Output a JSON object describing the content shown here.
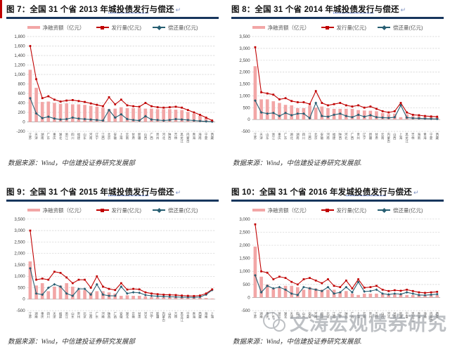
{
  "page": {
    "return_mark": "↵",
    "watermark_text": "文涛宏观债券研究"
  },
  "legend": {
    "net": "净融资额（亿元）",
    "issue": "发行量(亿元)",
    "repay": "偿还量(亿元)"
  },
  "colors": {
    "bar": "#f2a6a6",
    "issue_line": "#c00000",
    "repay_line": "#275e72",
    "title_rule": "#17365d",
    "grid": "#cfcfcf",
    "accent": "#c00000"
  },
  "chart_data": [
    {
      "type": "bar",
      "fig_label": "图 7：",
      "title_pre": "全国 31 个省 2013 年",
      "title_link": "城投债发行",
      "title_post": "与偿还",
      "source": "数据来源：Wind，中信建投证券研究发展部",
      "ylim": [
        -200,
        1800
      ],
      "ystep": 200,
      "categories": [
        "江苏",
        "天津",
        "湖南",
        "广东",
        "重庆",
        "湖北",
        "浙江",
        "四川",
        "福建",
        "山东",
        "河南",
        "辽宁",
        "江西",
        "北京",
        "安徽",
        "上海",
        "云南",
        "甘肃",
        "新疆",
        "山西",
        "广西",
        "贵州",
        "河北",
        "陕西",
        "吉林",
        "黑龙江",
        "内蒙古",
        "青海",
        "海南",
        "宁夏",
        "西藏"
      ],
      "series": [
        {
          "name": "净融资额（亿元）",
          "role": "bars",
          "values": [
            1100,
            720,
            420,
            430,
            400,
            380,
            390,
            370,
            370,
            360,
            340,
            320,
            300,
            270,
            280,
            310,
            290,
            290,
            290,
            280,
            280,
            270,
            270,
            270,
            260,
            250,
            210,
            170,
            130,
            80,
            25
          ]
        },
        {
          "name": "发行量(亿元)",
          "role": "issue",
          "values": [
            1600,
            900,
            500,
            540,
            470,
            430,
            450,
            460,
            440,
            420,
            390,
            360,
            330,
            520,
            370,
            470,
            350,
            330,
            320,
            400,
            330,
            310,
            300,
            310,
            320,
            300,
            250,
            200,
            150,
            90,
            30
          ]
        },
        {
          "name": "偿还量(亿元)",
          "role": "repay",
          "values": [
            500,
            180,
            80,
            110,
            70,
            50,
            60,
            90,
            70,
            60,
            50,
            40,
            30,
            250,
            90,
            160,
            60,
            40,
            30,
            120,
            50,
            40,
            30,
            40,
            60,
            50,
            40,
            30,
            20,
            10,
            5
          ]
        }
      ]
    },
    {
      "type": "bar",
      "fig_label": "图 8：",
      "title_pre": "全国 31 个省 2014 年",
      "title_link": "城投债发行",
      "title_post": "与偿还",
      "source": "数据来源：Wind，中信建投证券研究发展部.",
      "ylim": [
        -500,
        3500
      ],
      "ystep": 500,
      "categories": [
        "江苏",
        "天津",
        "山东",
        "浙江",
        "重庆",
        "广东",
        "湖北",
        "湖南",
        "四川",
        "江西",
        "北京",
        "安徽",
        "河南",
        "福建",
        "陕西",
        "河北",
        "广西",
        "贵州",
        "辽宁",
        "新疆",
        "甘肃",
        "云南",
        "内蒙古",
        "山西",
        "上海",
        "黑龙江",
        "吉林",
        "海南",
        "青海",
        "宁夏",
        "西藏"
      ],
      "series": [
        {
          "name": "净融资额（亿元）",
          "role": "bars",
          "values": [
            2250,
            850,
            850,
            770,
            700,
            620,
            600,
            480,
            480,
            590,
            500,
            550,
            480,
            450,
            450,
            450,
            450,
            400,
            380,
            370,
            350,
            270,
            230,
            250,
            100,
            220,
            140,
            130,
            110,
            100,
            95
          ]
        },
        {
          "name": "发行量(亿元)",
          "role": "issue",
          "values": [
            3050,
            1150,
            1100,
            1050,
            850,
            900,
            780,
            730,
            730,
            650,
            1200,
            700,
            600,
            650,
            700,
            600,
            550,
            600,
            500,
            550,
            450,
            350,
            300,
            350,
            700,
            300,
            200,
            180,
            150,
            130,
            120
          ]
        },
        {
          "name": "偿还量(亿元)",
          "role": "repay",
          "values": [
            800,
            300,
            250,
            280,
            150,
            280,
            180,
            250,
            250,
            60,
            700,
            150,
            120,
            200,
            250,
            150,
            100,
            200,
            120,
            180,
            100,
            80,
            70,
            100,
            600,
            80,
            60,
            50,
            40,
            30,
            25
          ]
        }
      ]
    },
    {
      "type": "bar",
      "fig_label": "图 9：",
      "title_pre": "全国 31 个省 2015 年",
      "title_link": "城投债发行",
      "title_post": "与偿还",
      "source": "数据来源：Wind，中信建投证券研究发展部",
      "ylim": [
        -500,
        3500
      ],
      "ystep": 500,
      "categories": [
        "江苏",
        "湖南",
        "重庆",
        "四川",
        "天津",
        "福建",
        "浙江",
        "山东",
        "贵州",
        "北京",
        "江西",
        "广东",
        "河南",
        "陕西",
        "广西",
        "安徽",
        "湖北",
        "云南",
        "甘肃",
        "河北",
        "辽宁",
        "新疆",
        "内蒙古",
        "山西",
        "吉林",
        "黑龙江",
        "宁夏",
        "青海",
        "西藏",
        "海南",
        "上海"
      ],
      "series": [
        {
          "name": "净融资额（亿元）",
          "role": "bars",
          "values": [
            1650,
            600,
            700,
            350,
            550,
            600,
            700,
            550,
            400,
            400,
            300,
            350,
            350,
            300,
            250,
            150,
            170,
            150,
            150,
            120,
            100,
            90,
            80,
            80,
            80,
            70,
            60,
            60,
            60,
            50,
            30
          ]
        },
        {
          "name": "发行量(亿元)",
          "role": "issue",
          "values": [
            3000,
            850,
            900,
            850,
            1200,
            1150,
            950,
            700,
            850,
            850,
            500,
            1000,
            550,
            450,
            400,
            700,
            420,
            450,
            430,
            300,
            250,
            220,
            200,
            190,
            180,
            160,
            150,
            140,
            160,
            250,
            430
          ]
        },
        {
          "name": "偿还量(亿元)",
          "role": "repay",
          "values": [
            1350,
            250,
            200,
            500,
            650,
            550,
            250,
            150,
            450,
            450,
            200,
            650,
            200,
            150,
            150,
            550,
            250,
            300,
            280,
            180,
            150,
            130,
            120,
            110,
            100,
            90,
            90,
            80,
            100,
            200,
            400
          ]
        }
      ]
    },
    {
      "type": "bar",
      "fig_label": "图 10：",
      "title_pre": "全国 31 个省 2016 年发",
      "title_link": "城投债发行",
      "title_post": "与偿还",
      "source": "数据来源：Wind，中信建投证券研究发展部.",
      "ylim": [
        -500,
        3000
      ],
      "ystep": 500,
      "categories": [
        "江苏",
        "湖南",
        "重庆",
        "广东",
        "浙江",
        "湖北",
        "天津",
        "四川",
        "山东",
        "安徽",
        "河南",
        "福建",
        "北京",
        "江西",
        "辽宁",
        "陕西",
        "广西",
        "上海",
        "云南",
        "贵州",
        "吉林",
        "山西",
        "河北",
        "甘肃",
        "新疆",
        "宁夏",
        "黑龙江",
        "青海",
        "海南",
        "内蒙古",
        "西藏"
      ],
      "series": [
        {
          "name": "净融资额（亿元）",
          "role": "bars",
          "values": [
            1950,
            800,
            500,
            350,
            400,
            450,
            450,
            400,
            300,
            400,
            350,
            300,
            300,
            300,
            200,
            250,
            150,
            100,
            150,
            150,
            150,
            150,
            130,
            130,
            130,
            100,
            100,
            100,
            90,
            90,
            90
          ]
        },
        {
          "name": "发行量(亿元)",
          "role": "issue",
          "values": [
            2800,
            1000,
            950,
            700,
            800,
            750,
            600,
            500,
            700,
            750,
            650,
            550,
            700,
            450,
            400,
            650,
            350,
            700,
            380,
            400,
            450,
            300,
            250,
            280,
            260,
            300,
            250,
            200,
            180,
            200,
            220
          ]
        },
        {
          "name": "偿还量(亿元)",
          "role": "repay",
          "values": [
            850,
            200,
            450,
            350,
            400,
            300,
            150,
            100,
            400,
            350,
            300,
            250,
            400,
            150,
            200,
            400,
            200,
            600,
            230,
            250,
            300,
            150,
            120,
            150,
            130,
            200,
            150,
            100,
            90,
            110,
            130
          ]
        }
      ]
    }
  ]
}
